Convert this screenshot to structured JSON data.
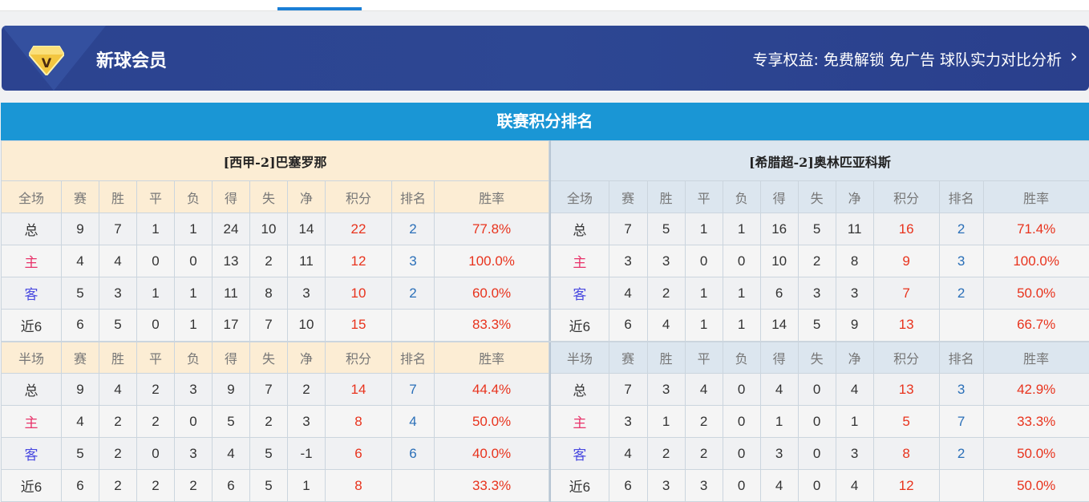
{
  "banner": {
    "title": "新球会员",
    "benefits": "专享权益: 免费解锁 免广告 球队实力对比分析",
    "chevron": "›",
    "icon": "vip-diamond-icon"
  },
  "section_title": "联赛积分排名",
  "columns": [
    "赛",
    "胜",
    "平",
    "负",
    "得",
    "失",
    "净",
    "积分",
    "排名",
    "胜率"
  ],
  "teams": [
    {
      "name": "[西甲-2]巴塞罗那",
      "full": {
        "label": "全场",
        "rows": [
          [
            "总",
            "9",
            "7",
            "1",
            "1",
            "24",
            "10",
            "14",
            "22",
            "2",
            "77.8%"
          ],
          [
            "主",
            "4",
            "4",
            "0",
            "0",
            "13",
            "2",
            "11",
            "12",
            "3",
            "100.0%"
          ],
          [
            "客",
            "5",
            "3",
            "1",
            "1",
            "11",
            "8",
            "3",
            "10",
            "2",
            "60.0%"
          ],
          [
            "近6",
            "6",
            "5",
            "0",
            "1",
            "17",
            "7",
            "10",
            "15",
            "",
            "83.3%"
          ]
        ]
      },
      "half": {
        "label": "半场",
        "rows": [
          [
            "总",
            "9",
            "4",
            "2",
            "3",
            "9",
            "7",
            "2",
            "14",
            "7",
            "44.4%"
          ],
          [
            "主",
            "4",
            "2",
            "2",
            "0",
            "5",
            "2",
            "3",
            "8",
            "4",
            "50.0%"
          ],
          [
            "客",
            "5",
            "2",
            "0",
            "3",
            "4",
            "5",
            "-1",
            "6",
            "6",
            "40.0%"
          ],
          [
            "近6",
            "6",
            "2",
            "2",
            "2",
            "6",
            "5",
            "1",
            "8",
            "",
            "33.3%"
          ]
        ]
      }
    },
    {
      "name": "[希腊超-2]奥林匹亚科斯",
      "full": {
        "label": "全场",
        "rows": [
          [
            "总",
            "7",
            "5",
            "1",
            "1",
            "16",
            "5",
            "11",
            "16",
            "2",
            "71.4%"
          ],
          [
            "主",
            "3",
            "3",
            "0",
            "0",
            "10",
            "2",
            "8",
            "9",
            "3",
            "100.0%"
          ],
          [
            "客",
            "4",
            "2",
            "1",
            "1",
            "6",
            "3",
            "3",
            "7",
            "2",
            "50.0%"
          ],
          [
            "近6",
            "6",
            "4",
            "1",
            "1",
            "14",
            "5",
            "9",
            "13",
            "",
            "66.7%"
          ]
        ]
      },
      "half": {
        "label": "半场",
        "rows": [
          [
            "总",
            "7",
            "3",
            "4",
            "0",
            "4",
            "0",
            "4",
            "13",
            "3",
            "42.9%"
          ],
          [
            "主",
            "3",
            "1",
            "2",
            "0",
            "1",
            "0",
            "1",
            "5",
            "7",
            "33.3%"
          ],
          [
            "客",
            "4",
            "2",
            "2",
            "0",
            "3",
            "0",
            "3",
            "8",
            "2",
            "50.0%"
          ],
          [
            "近6",
            "6",
            "3",
            "3",
            "0",
            "4",
            "0",
            "4",
            "12",
            "",
            "50.0%"
          ]
        ]
      }
    }
  ]
}
